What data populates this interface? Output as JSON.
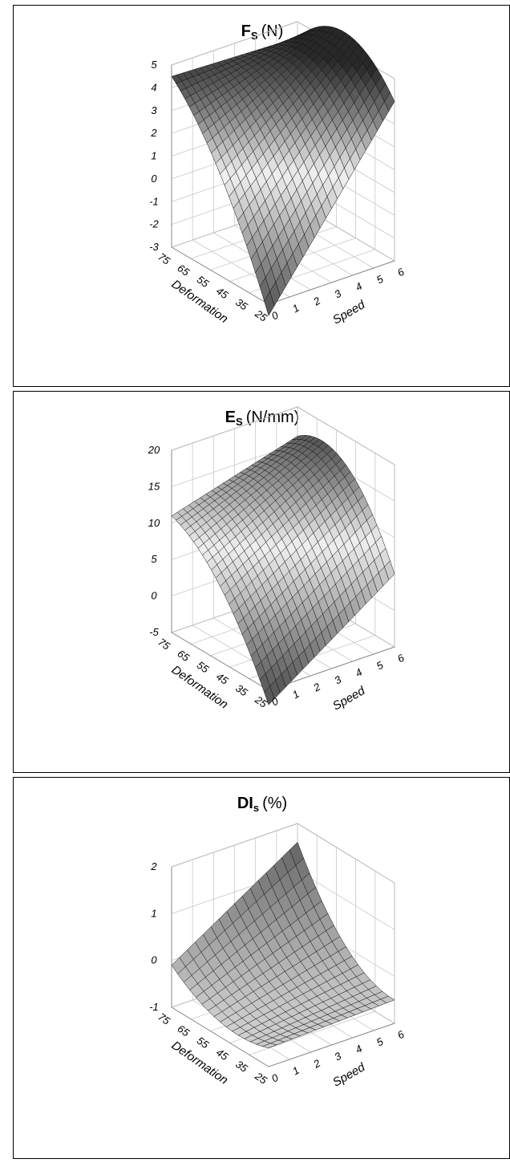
{
  "chart_data": [
    {
      "type": "surface",
      "title": "F",
      "title_subscript": "S",
      "title_unit": "(N)",
      "xlabel": "Deformation",
      "ylabel": "Speed",
      "zlabel": "",
      "x_ticks": [
        "25",
        "35",
        "45",
        "55",
        "65",
        "75"
      ],
      "y_ticks": [
        "0",
        "1",
        "2",
        "3",
        "4",
        "5",
        "6"
      ],
      "z_ticks": [
        "-3",
        "-2",
        "-1",
        "0",
        "1",
        "2",
        "3",
        "4",
        "5"
      ],
      "xlim": [
        25,
        75
      ],
      "ylim": [
        0,
        6
      ],
      "zlim": [
        -3,
        5
      ],
      "grid": true,
      "corner_values": [
        {
          "deformation": 75,
          "speed": 0,
          "value": 4.5
        },
        {
          "deformation": 75,
          "speed": 6,
          "value": 4.3
        },
        {
          "deformation": 25,
          "speed": 6,
          "value": 4.0
        },
        {
          "deformation": 25,
          "speed": 0,
          "value": -3.5
        }
      ]
    },
    {
      "type": "surface",
      "title": "E",
      "title_subscript": "S",
      "title_unit": "(N/mm)",
      "xlabel": "Deformation",
      "ylabel": "Speed",
      "zlabel": "",
      "x_ticks": [
        "25",
        "35",
        "45",
        "55",
        "65",
        "75"
      ],
      "y_ticks": [
        "0",
        "1",
        "2",
        "3",
        "4",
        "5",
        "6"
      ],
      "z_ticks": [
        "-5",
        "0",
        "5",
        "10",
        "15",
        "20"
      ],
      "xlim": [
        25,
        75
      ],
      "ylim": [
        0,
        6
      ],
      "zlim": [
        -5,
        20
      ],
      "grid": true,
      "corner_values": [
        {
          "deformation": 75,
          "speed": 0,
          "value": 11
        },
        {
          "deformation": 75,
          "speed": 6,
          "value": 16
        },
        {
          "deformation": 25,
          "speed": 6,
          "value": 5
        },
        {
          "deformation": 25,
          "speed": 0,
          "value": -7
        }
      ]
    },
    {
      "type": "surface",
      "title": "DI",
      "title_subscript": "s",
      "title_unit": "(%)",
      "xlabel": "Deformation",
      "ylabel": "Speed",
      "zlabel": "",
      "x_ticks": [
        "25",
        "35",
        "45",
        "55",
        "65",
        "75"
      ],
      "y_ticks": [
        "0",
        "1",
        "2",
        "3",
        "4",
        "5",
        "6"
      ],
      "z_ticks": [
        "-1",
        "0",
        "1",
        "2"
      ],
      "xlim": [
        25,
        75
      ],
      "ylim": [
        0,
        6
      ],
      "zlim": [
        -1,
        2
      ],
      "grid": true,
      "corner_values": [
        {
          "deformation": 75,
          "speed": 0,
          "value": -0.1
        },
        {
          "deformation": 75,
          "speed": 6,
          "value": 1.6
        },
        {
          "deformation": 25,
          "speed": 6,
          "value": -0.5
        },
        {
          "deformation": 25,
          "speed": 0,
          "value": -0.6
        }
      ]
    }
  ]
}
